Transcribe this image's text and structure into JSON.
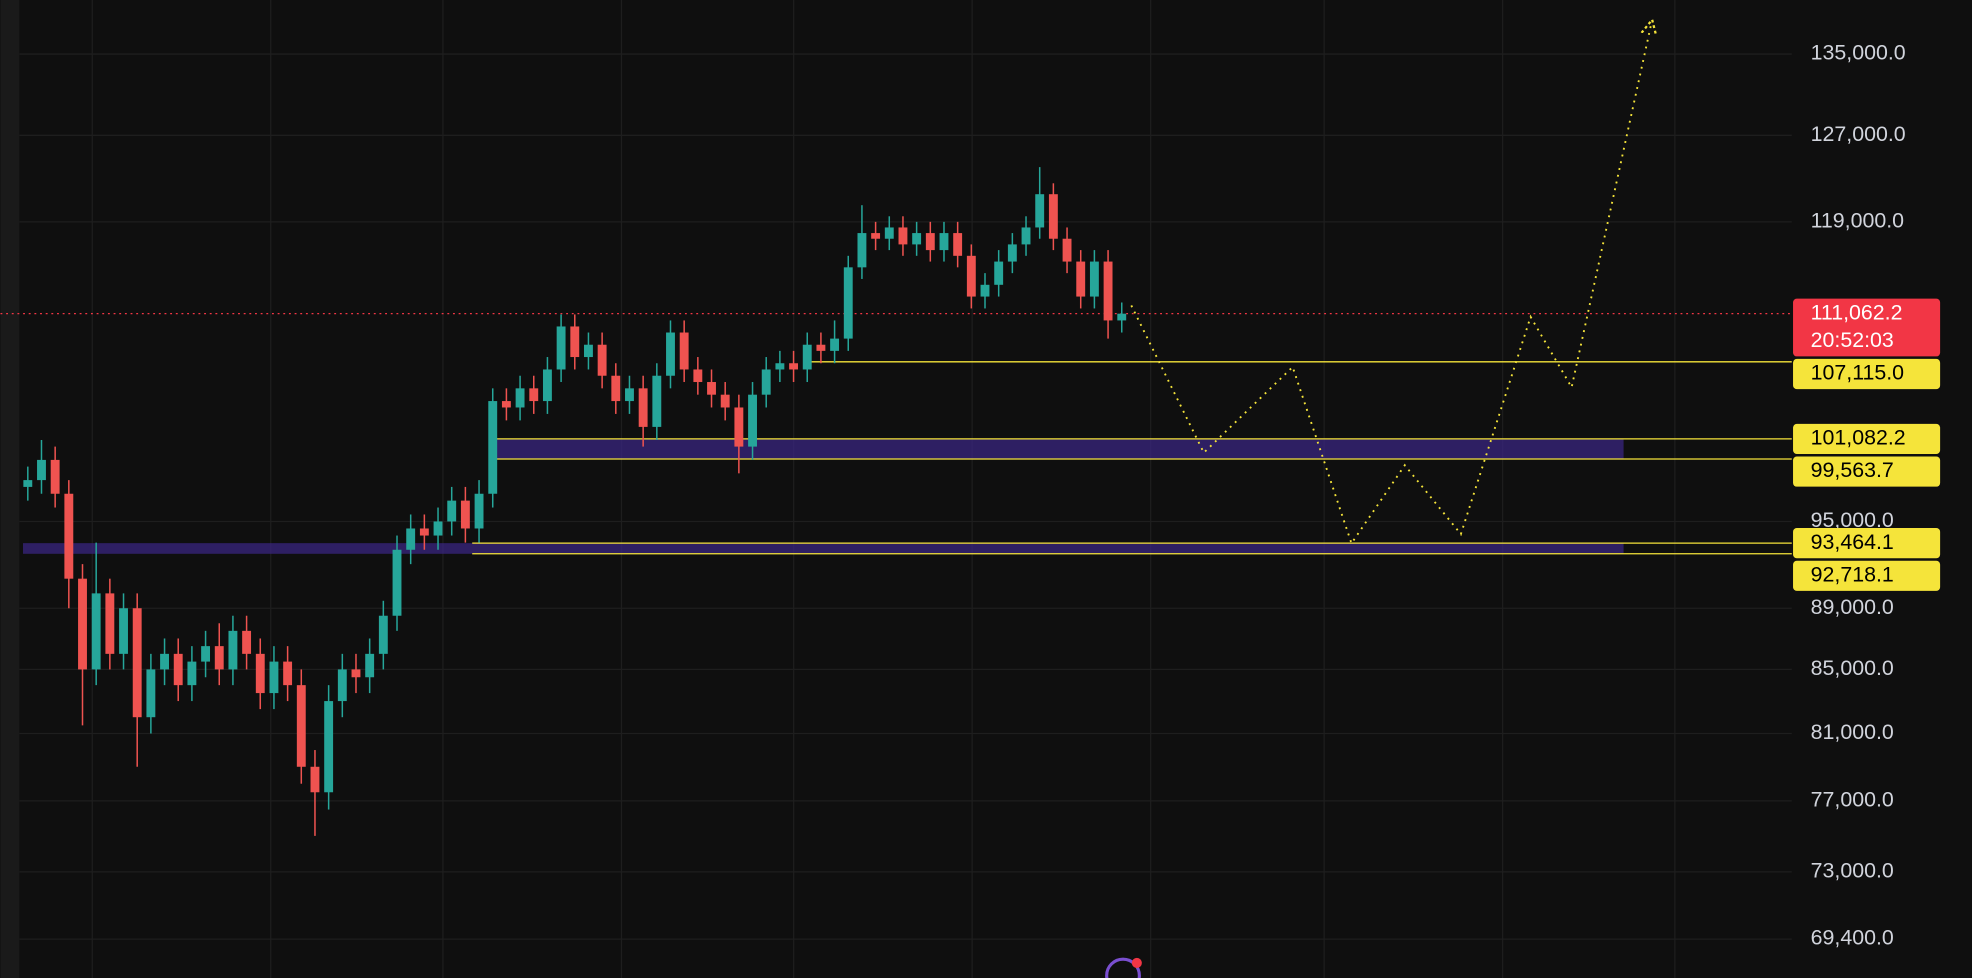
{
  "chart_data": {
    "type": "candlestick",
    "log_scale": true,
    "grid": true,
    "xlim": [
      -2,
      129
    ],
    "ylim": [
      67400,
      140600
    ],
    "yticks": [
      {
        "value": 69400,
        "label": "69,400.0"
      },
      {
        "value": 73000,
        "label": "73,000.0"
      },
      {
        "value": 77000,
        "label": "77,000.0"
      },
      {
        "value": 81000,
        "label": "81,000.0"
      },
      {
        "value": 85000,
        "label": "85,000.0"
      },
      {
        "value": 89000,
        "label": "89,000.0"
      },
      {
        "value": 95000,
        "label": "95,000.0"
      },
      {
        "value": 119000,
        "label": "119,000.0"
      },
      {
        "value": 127000,
        "label": "127,000.0"
      },
      {
        "value": 135000,
        "label": "135,000.0"
      }
    ],
    "up_color": "#26a69a",
    "down_color": "#ef5350",
    "open": [
      97500,
      98000,
      99500,
      97000,
      91000,
      85000,
      90000,
      86000,
      89000,
      82000,
      85000,
      86000,
      84000,
      85500,
      86500,
      85000,
      87500,
      86000,
      83500,
      85500,
      84000,
      79000,
      77500,
      83000,
      85000,
      84500,
      86000,
      88500,
      93000,
      94500,
      94000,
      95000,
      96500,
      94500,
      97000,
      104000,
      103500,
      105000,
      104000,
      106500,
      110000,
      107500,
      108500,
      106000,
      104000,
      105000,
      102000,
      106000,
      109500,
      106500,
      105500,
      104500,
      103500,
      100500,
      104500,
      106500,
      107000,
      106500,
      108500,
      108000,
      109000,
      115000,
      118000,
      117500,
      118500,
      117000,
      118000,
      116500,
      118000,
      116000,
      112500,
      113500,
      115500,
      117000,
      118500,
      121500,
      117500,
      115500,
      112500,
      115500,
      110500
    ],
    "high": [
      99000,
      101000,
      100500,
      98000,
      92000,
      93500,
      91000,
      90000,
      90000,
      86000,
      87000,
      87000,
      86500,
      87500,
      88000,
      88500,
      88500,
      87000,
      86500,
      86500,
      85000,
      80000,
      84000,
      86000,
      86000,
      87000,
      89500,
      94000,
      95500,
      95500,
      96000,
      97500,
      97500,
      98000,
      105000,
      105000,
      106000,
      106000,
      107500,
      111000,
      111000,
      109500,
      109500,
      107000,
      106000,
      106000,
      107000,
      110500,
      110500,
      107500,
      106500,
      105500,
      104500,
      105500,
      107500,
      108000,
      108000,
      109500,
      109500,
      110500,
      116000,
      120500,
      119000,
      119500,
      119500,
      119000,
      119000,
      119000,
      119000,
      117000,
      114500,
      116500,
      118000,
      119500,
      124000,
      122500,
      118500,
      116500,
      116500,
      116500,
      112000
    ],
    "low": [
      96500,
      97000,
      96000,
      89000,
      81500,
      84000,
      85000,
      85000,
      79000,
      81000,
      84000,
      83000,
      83000,
      84500,
      84000,
      84000,
      85000,
      82500,
      82500,
      83000,
      78000,
      75000,
      76500,
      82000,
      83500,
      83500,
      85000,
      87500,
      92000,
      93000,
      93000,
      94000,
      93500,
      93500,
      96000,
      102500,
      102500,
      103000,
      103000,
      105500,
      106500,
      106500,
      105000,
      103000,
      103000,
      100500,
      101000,
      105000,
      105500,
      104500,
      103500,
      102500,
      98500,
      99500,
      103500,
      105500,
      105500,
      105500,
      107000,
      107000,
      108000,
      114000,
      116500,
      116500,
      116000,
      116000,
      115500,
      115500,
      115000,
      111500,
      111500,
      112500,
      114500,
      116000,
      117500,
      116500,
      114500,
      111500,
      111500,
      109000,
      109500
    ],
    "close": [
      98000,
      99500,
      97000,
      91000,
      85000,
      90000,
      86000,
      89000,
      82000,
      85000,
      86000,
      84000,
      85500,
      86500,
      85000,
      87500,
      86000,
      83500,
      85500,
      84000,
      79000,
      77500,
      83000,
      85000,
      84500,
      86000,
      88500,
      93000,
      94500,
      94000,
      95000,
      96500,
      94500,
      97000,
      104000,
      103500,
      105000,
      104000,
      106500,
      110000,
      107500,
      108500,
      106000,
      104000,
      105000,
      102000,
      106000,
      109500,
      106500,
      105500,
      104500,
      103500,
      100500,
      104500,
      106500,
      107000,
      106500,
      108500,
      108000,
      109000,
      115000,
      118000,
      117500,
      118500,
      117000,
      118000,
      116500,
      118000,
      116000,
      112500,
      113500,
      115500,
      117000,
      118500,
      121500,
      117500,
      115500,
      112500,
      115500,
      110500,
      111062.2
    ],
    "last_price": {
      "value": 111062.2,
      "label": "111,062.2",
      "countdown": "20:52:03",
      "color": "#f23645"
    },
    "levels": [
      {
        "value": 107115.0,
        "label": "107,115.0",
        "start": 56.8
      },
      {
        "value": 101082.2,
        "label": "101,082.2",
        "start": 33.8
      },
      {
        "value": 99563.7,
        "label": "99,563.7",
        "start": 33.8
      },
      {
        "value": 93464.1,
        "label": "93,464.1",
        "start": 32.5
      },
      {
        "value": 92718.1,
        "label": "92,718.1",
        "start": 32.5
      }
    ],
    "level_color": "#f5e43a",
    "zones": [
      {
        "top": 101082.2,
        "bottom": 99563.7,
        "start": 33.8,
        "end": 116.7
      },
      {
        "top": 93464.1,
        "bottom": 92718.1,
        "start": -0.35,
        "end": 116.7
      }
    ],
    "zone_color": "#3a2580",
    "projection": {
      "x": [
        80.7,
        86.0,
        92.5,
        96.8,
        100.7,
        104.8,
        109.9,
        112.9,
        118.7
      ],
      "values": [
        111750,
        100040,
        106700,
        93450,
        99100,
        94100,
        110800,
        105080,
        137960
      ],
      "color": "#f5e43a"
    }
  }
}
